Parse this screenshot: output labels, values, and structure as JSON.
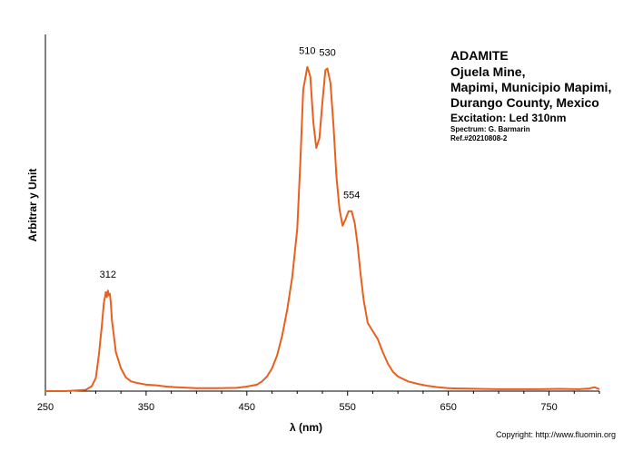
{
  "info": {
    "line1": "ADAMITE",
    "line2": "Ojuela Mine,",
    "line3": "Mapimi, Municipio Mapimi,",
    "line4": "Durango County, Mexico",
    "excitation": "Excitation: Led 310nm",
    "spectrum_by": "Spectrum: G. Barmarin",
    "ref": "Ref.#20210808-2"
  },
  "copyright": "Copyright: http://www.fluomin.org",
  "chart_data": {
    "type": "line",
    "title": "",
    "xlabel": "λ (nm)",
    "ylabel": "Arbitrar y Unit",
    "xlim": [
      250,
      800
    ],
    "ylim": [
      0,
      1.1
    ],
    "xticks": [
      250,
      350,
      450,
      550,
      650,
      750
    ],
    "x_tick_labels": [
      "250",
      "350",
      "450",
      "550",
      "650",
      "750"
    ],
    "grid": false,
    "legend": "none",
    "series": [
      {
        "color": "#e8601c",
        "x": [
          250,
          270,
          290,
          296,
          300,
          303,
          306,
          308,
          310,
          311,
          312,
          313,
          314,
          315,
          316,
          318,
          320,
          325,
          330,
          335,
          340,
          350,
          360,
          370,
          380,
          400,
          420,
          440,
          450,
          460,
          465,
          470,
          475,
          480,
          485,
          490,
          495,
          500,
          503,
          506,
          510,
          513,
          516,
          519,
          522,
          525,
          528,
          530,
          533,
          536,
          539,
          542,
          545,
          548,
          551,
          554,
          557,
          560,
          563,
          566,
          570,
          575,
          580,
          585,
          590,
          595,
          600,
          610,
          620,
          630,
          640,
          650,
          660,
          680,
          700,
          720,
          740,
          760,
          780,
          790,
          795,
          800
        ],
        "y": [
          0.0,
          0.0,
          0.004,
          0.015,
          0.04,
          0.11,
          0.2,
          0.27,
          0.305,
          0.29,
          0.31,
          0.295,
          0.3,
          0.27,
          0.22,
          0.17,
          0.12,
          0.07,
          0.042,
          0.03,
          0.026,
          0.02,
          0.018,
          0.014,
          0.012,
          0.009,
          0.009,
          0.01,
          0.014,
          0.02,
          0.03,
          0.045,
          0.07,
          0.11,
          0.17,
          0.25,
          0.35,
          0.5,
          0.7,
          0.93,
          1.0,
          0.97,
          0.83,
          0.75,
          0.78,
          0.89,
          0.99,
          0.995,
          0.95,
          0.82,
          0.66,
          0.56,
          0.51,
          0.53,
          0.555,
          0.555,
          0.52,
          0.45,
          0.36,
          0.28,
          0.21,
          0.185,
          0.16,
          0.12,
          0.085,
          0.06,
          0.045,
          0.03,
          0.022,
          0.016,
          0.012,
          0.009,
          0.008,
          0.007,
          0.006,
          0.006,
          0.006,
          0.007,
          0.006,
          0.008,
          0.012,
          0.006
        ]
      }
    ],
    "annotations": [
      {
        "text": "312",
        "x": 312,
        "y": 0.31
      },
      {
        "text": "510",
        "x": 510,
        "y": 1.0
      },
      {
        "text": "530",
        "x": 530,
        "y": 0.995
      },
      {
        "text": "554",
        "x": 554,
        "y": 0.555
      }
    ]
  }
}
